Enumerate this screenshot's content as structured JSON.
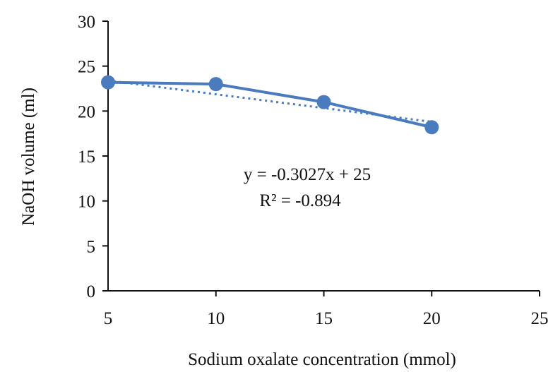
{
  "chart_data": {
    "type": "line",
    "title": "",
    "xlabel": "Sodium oxalate concentration (mmol)",
    "ylabel": "NaOH volume (ml)",
    "xlim": [
      5,
      25
    ],
    "ylim": [
      0,
      30
    ],
    "x_ticks": [
      "5",
      "10",
      "15",
      "20",
      "25"
    ],
    "y_ticks": [
      "0",
      "5",
      "10",
      "15",
      "20",
      "25",
      "30"
    ],
    "grid": false,
    "legend": "none",
    "series": [
      {
        "x": [
          5,
          10,
          15,
          20
        ],
        "values": [
          23.2,
          23.0,
          21.0,
          18.2
        ],
        "color": "#4A7BBF",
        "marker": "circle"
      }
    ],
    "trendline": {
      "style": "dotted",
      "color": "#4A7BBF",
      "x": [
        5,
        20
      ],
      "values": [
        23.4,
        18.8
      ],
      "equation": "y = -0.3027x + 25",
      "r_squared": "R² = -0.894"
    }
  }
}
